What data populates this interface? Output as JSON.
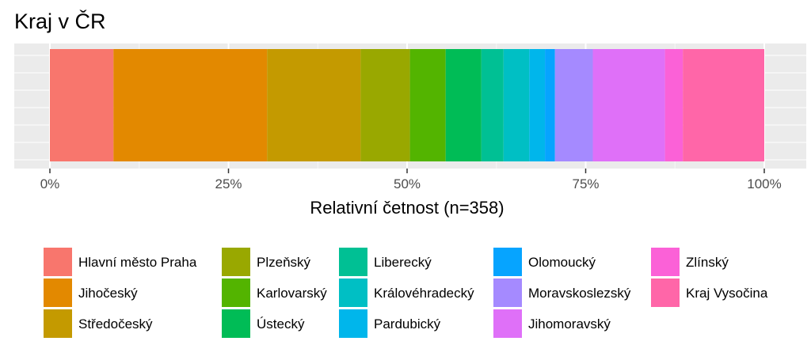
{
  "chart_data": {
    "type": "bar",
    "orientation": "horizontal",
    "stacked": true,
    "title": "Kraj v ČR",
    "xlabel": "Relativní četnost (n=358)",
    "ylabel": "",
    "xlim": [
      0,
      1
    ],
    "ticks": [
      0,
      0.25,
      0.5,
      0.75,
      1
    ],
    "tick_labels": [
      "0%",
      "25%",
      "50%",
      "75%",
      "100%"
    ],
    "grid": true,
    "legend_position": "bottom",
    "series": [
      {
        "name": "Hlavní město Praha",
        "value": 0.089,
        "color": "#F8766D"
      },
      {
        "name": "Jihočeský",
        "value": 0.215,
        "color": "#E38900"
      },
      {
        "name": "Středočeský",
        "value": 0.131,
        "color": "#C49A00"
      },
      {
        "name": "Plzeňský",
        "value": 0.069,
        "color": "#99A800"
      },
      {
        "name": "Karlovarský",
        "value": 0.05,
        "color": "#53B400"
      },
      {
        "name": "Ústecký",
        "value": 0.05,
        "color": "#00BC56"
      },
      {
        "name": "Liberecký",
        "value": 0.031,
        "color": "#00C094"
      },
      {
        "name": "Královéhradecký",
        "value": 0.036,
        "color": "#00BFC4"
      },
      {
        "name": "Pardubický",
        "value": 0.022,
        "color": "#00B6EB"
      },
      {
        "name": "Olomoucký",
        "value": 0.014,
        "color": "#06A4FF"
      },
      {
        "name": "Moravskoslezský",
        "value": 0.053,
        "color": "#A58AFF"
      },
      {
        "name": "Jihomoravský",
        "value": 0.101,
        "color": "#DF70F8"
      },
      {
        "name": "Zlínský",
        "value": 0.025,
        "color": "#FB61D7"
      },
      {
        "name": "Kraj Vysočina",
        "value": 0.114,
        "color": "#FF66A8"
      }
    ]
  }
}
